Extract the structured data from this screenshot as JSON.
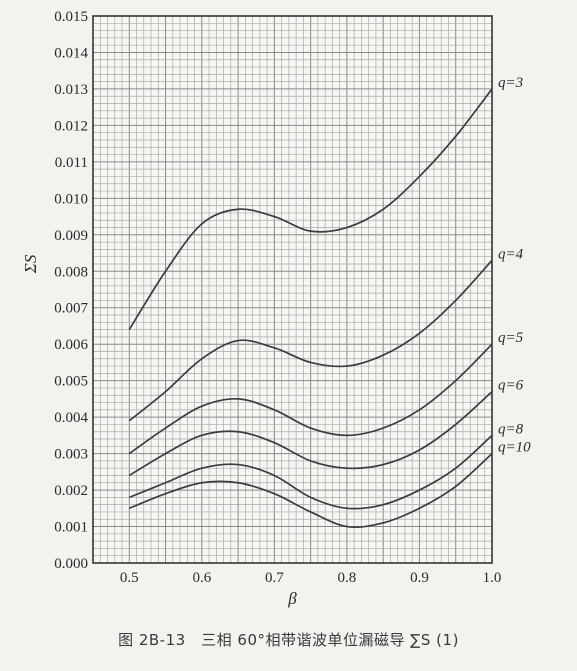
{
  "caption": "图 2B-13　三相 60°相带谐波单位漏磁导 ∑S (1)",
  "chart_data": {
    "type": "line",
    "title": "",
    "xlabel": "β",
    "ylabel": "ΣS",
    "xlim": [
      0.45,
      1.0
    ],
    "ylim": [
      0.0,
      0.015
    ],
    "xticks": [
      "0.5",
      "0.6",
      "0.7",
      "0.8",
      "0.9",
      "1.0"
    ],
    "yticks": [
      "0.000",
      "0.001",
      "0.002",
      "0.003",
      "0.004",
      "0.005",
      "0.006",
      "0.007",
      "0.008",
      "0.009",
      "0.010",
      "0.011",
      "0.012",
      "0.013",
      "0.014",
      "0.015"
    ],
    "grid": true,
    "x": [
      0.5,
      0.55,
      0.6,
      0.65,
      0.7,
      0.75,
      0.8,
      0.85,
      0.9,
      0.95,
      1.0
    ],
    "series": [
      {
        "name": "q=3",
        "values": [
          0.0064,
          0.008,
          0.0093,
          0.0097,
          0.0095,
          0.0091,
          0.0092,
          0.0097,
          0.0106,
          0.0117,
          0.013
        ]
      },
      {
        "name": "q=4",
        "values": [
          0.0039,
          0.0047,
          0.0056,
          0.0061,
          0.0059,
          0.0055,
          0.0054,
          0.0057,
          0.0063,
          0.0072,
          0.0083
        ]
      },
      {
        "name": "q=5",
        "values": [
          0.003,
          0.0037,
          0.0043,
          0.0045,
          0.0042,
          0.0037,
          0.0035,
          0.0037,
          0.0042,
          0.005,
          0.006
        ]
      },
      {
        "name": "q=6",
        "values": [
          0.0024,
          0.003,
          0.0035,
          0.0036,
          0.0033,
          0.0028,
          0.0026,
          0.0027,
          0.0031,
          0.0038,
          0.0047
        ]
      },
      {
        "name": "q=8",
        "values": [
          0.0018,
          0.0022,
          0.0026,
          0.0027,
          0.0024,
          0.0018,
          0.0015,
          0.0016,
          0.002,
          0.0026,
          0.0035
        ]
      },
      {
        "name": "q=10",
        "values": [
          0.0015,
          0.0019,
          0.0022,
          0.0022,
          0.0019,
          0.0014,
          0.001,
          0.0011,
          0.0015,
          0.0021,
          0.003
        ]
      }
    ]
  }
}
